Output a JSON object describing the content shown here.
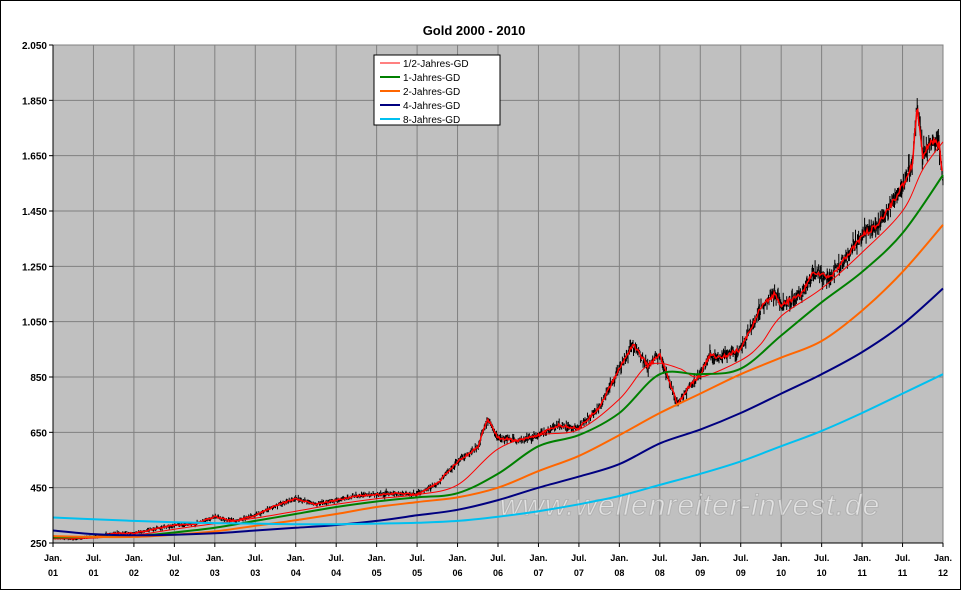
{
  "chart_data": {
    "type": "line",
    "title": "Gold 2000 - 2010",
    "watermark": "www.wellenreiter-invest.de",
    "ylim": [
      250,
      2050
    ],
    "yticks": [
      250,
      450,
      650,
      850,
      1050,
      1250,
      1450,
      1650,
      1850,
      2050
    ],
    "ytick_labels": [
      "250",
      "450",
      "650",
      "850",
      "1.050",
      "1.250",
      "1.450",
      "1.650",
      "1.850",
      "2.050"
    ],
    "xlim": [
      2001.0,
      2012.0
    ],
    "xticks": [
      {
        "x": 2001.0,
        "top": "Jan.",
        "bottom": "01"
      },
      {
        "x": 2001.5,
        "top": "Jul.",
        "bottom": "01"
      },
      {
        "x": 2002.0,
        "top": "Jan.",
        "bottom": "02"
      },
      {
        "x": 2002.5,
        "top": "Jul.",
        "bottom": "02"
      },
      {
        "x": 2003.0,
        "top": "Jan.",
        "bottom": "03"
      },
      {
        "x": 2003.5,
        "top": "Jul.",
        "bottom": "03"
      },
      {
        "x": 2004.0,
        "top": "Jan.",
        "bottom": "04"
      },
      {
        "x": 2004.5,
        "top": "Jul.",
        "bottom": "04"
      },
      {
        "x": 2005.0,
        "top": "Jan.",
        "bottom": "05"
      },
      {
        "x": 2005.5,
        "top": "Jul.",
        "bottom": "05"
      },
      {
        "x": 2006.0,
        "top": "Jan.",
        "bottom": "06"
      },
      {
        "x": 2006.5,
        "top": "Jul.",
        "bottom": "06"
      },
      {
        "x": 2007.0,
        "top": "Jan.",
        "bottom": "07"
      },
      {
        "x": 2007.5,
        "top": "Jul.",
        "bottom": "07"
      },
      {
        "x": 2008.0,
        "top": "Jan.",
        "bottom": "08"
      },
      {
        "x": 2008.5,
        "top": "Jul.",
        "bottom": "08"
      },
      {
        "x": 2009.0,
        "top": "Jan.",
        "bottom": "09"
      },
      {
        "x": 2009.5,
        "top": "Jul.",
        "bottom": "09"
      },
      {
        "x": 2010.0,
        "top": "Jan.",
        "bottom": "10"
      },
      {
        "x": 2010.5,
        "top": "Jul.",
        "bottom": "10"
      },
      {
        "x": 2011.0,
        "top": "Jan.",
        "bottom": "11"
      },
      {
        "x": 2011.5,
        "top": "Jul.",
        "bottom": "11"
      },
      {
        "x": 2012.0,
        "top": "Jan.",
        "bottom": "12"
      }
    ],
    "grid": true,
    "legend_position": "top-center",
    "price": {
      "color_bar": "#000000",
      "color_close": "#ff0000",
      "x": [
        2001.0,
        2001.25,
        2001.5,
        2001.75,
        2002.0,
        2002.25,
        2002.5,
        2002.75,
        2003.0,
        2003.25,
        2003.5,
        2003.75,
        2004.0,
        2004.25,
        2004.5,
        2004.75,
        2005.0,
        2005.25,
        2005.5,
        2005.75,
        2006.0,
        2006.25,
        2006.37,
        2006.5,
        2006.75,
        2007.0,
        2007.25,
        2007.5,
        2007.75,
        2008.0,
        2008.17,
        2008.35,
        2008.5,
        2008.62,
        2008.72,
        2008.85,
        2009.0,
        2009.12,
        2009.25,
        2009.5,
        2009.75,
        2009.92,
        2010.0,
        2010.25,
        2010.4,
        2010.6,
        2010.8,
        2011.0,
        2011.2,
        2011.35,
        2011.5,
        2011.62,
        2011.68,
        2011.75,
        2011.85,
        2011.95,
        2012.0
      ],
      "y": [
        270,
        265,
        272,
        285,
        285,
        300,
        315,
        318,
        345,
        330,
        350,
        385,
        410,
        390,
        405,
        420,
        425,
        430,
        425,
        465,
        545,
        595,
        700,
        630,
        620,
        640,
        675,
        665,
        740,
        880,
        970,
        890,
        930,
        830,
        750,
        810,
        860,
        930,
        920,
        950,
        1100,
        1150,
        1110,
        1150,
        1230,
        1210,
        1280,
        1360,
        1400,
        1470,
        1540,
        1620,
        1830,
        1650,
        1700,
        1690,
        1560
      ]
    },
    "series": [
      {
        "name": "1/2-Jahres-GD",
        "color": "#ff0000",
        "width": 1,
        "x": [
          2001.0,
          2001.5,
          2002.0,
          2002.5,
          2003.0,
          2003.5,
          2004.0,
          2004.5,
          2005.0,
          2005.5,
          2006.0,
          2006.5,
          2007.0,
          2007.5,
          2008.0,
          2008.3,
          2008.5,
          2008.75,
          2009.0,
          2009.5,
          2009.75,
          2010.0,
          2010.5,
          2011.0,
          2011.5,
          2011.75,
          2012.0
        ],
        "y": [
          265,
          268,
          278,
          300,
          320,
          340,
          365,
          390,
          410,
          425,
          460,
          590,
          640,
          660,
          770,
          880,
          900,
          880,
          850,
          910,
          970,
          1070,
          1170,
          1300,
          1450,
          1600,
          1700
        ]
      },
      {
        "name": "1-Jahres-GD",
        "color": "#008000",
        "width": 2,
        "x": [
          2001.0,
          2001.5,
          2002.0,
          2002.5,
          2003.0,
          2003.5,
          2004.0,
          2004.5,
          2005.0,
          2005.5,
          2006.0,
          2006.5,
          2007.0,
          2007.5,
          2008.0,
          2008.5,
          2009.0,
          2009.5,
          2010.0,
          2010.5,
          2011.0,
          2011.5,
          2012.0
        ],
        "y": [
          270,
          272,
          275,
          288,
          305,
          330,
          355,
          380,
          400,
          415,
          430,
          500,
          600,
          640,
          720,
          860,
          860,
          880,
          1000,
          1120,
          1230,
          1370,
          1580
        ]
      },
      {
        "name": "2-Jahres-GD",
        "color": "#ff6600",
        "width": 2,
        "x": [
          2001.0,
          2001.5,
          2002.0,
          2002.5,
          2003.0,
          2003.5,
          2004.0,
          2004.5,
          2005.0,
          2005.5,
          2006.0,
          2006.5,
          2007.0,
          2007.5,
          2008.0,
          2008.5,
          2009.0,
          2009.5,
          2010.0,
          2010.5,
          2011.0,
          2011.5,
          2012.0
        ],
        "y": [
          275,
          272,
          272,
          280,
          292,
          312,
          332,
          355,
          380,
          398,
          415,
          450,
          510,
          565,
          640,
          720,
          790,
          860,
          920,
          980,
          1090,
          1230,
          1400
        ]
      },
      {
        "name": "4-Jahres-GD",
        "color": "#000080",
        "width": 2,
        "x": [
          2001.0,
          2001.5,
          2002.0,
          2002.5,
          2003.0,
          2003.5,
          2004.0,
          2004.5,
          2005.0,
          2005.5,
          2006.0,
          2006.5,
          2007.0,
          2007.5,
          2008.0,
          2008.5,
          2009.0,
          2009.5,
          2010.0,
          2010.5,
          2011.0,
          2011.5,
          2012.0
        ],
        "y": [
          295,
          282,
          278,
          280,
          285,
          295,
          305,
          315,
          330,
          350,
          370,
          405,
          450,
          490,
          535,
          610,
          660,
          720,
          790,
          860,
          940,
          1040,
          1170
        ]
      },
      {
        "name": "8-Jahres-GD",
        "color": "#00c0f0",
        "width": 2,
        "x": [
          2001.0,
          2001.5,
          2002.0,
          2002.5,
          2003.0,
          2003.5,
          2004.0,
          2004.5,
          2005.0,
          2005.5,
          2006.0,
          2006.5,
          2007.0,
          2007.5,
          2008.0,
          2008.5,
          2009.0,
          2009.5,
          2010.0,
          2010.5,
          2011.0,
          2011.5,
          2012.0
        ],
        "y": [
          342,
          336,
          330,
          325,
          322,
          320,
          318,
          318,
          320,
          323,
          330,
          345,
          365,
          390,
          420,
          460,
          500,
          545,
          600,
          655,
          720,
          790,
          860
        ]
      }
    ]
  }
}
